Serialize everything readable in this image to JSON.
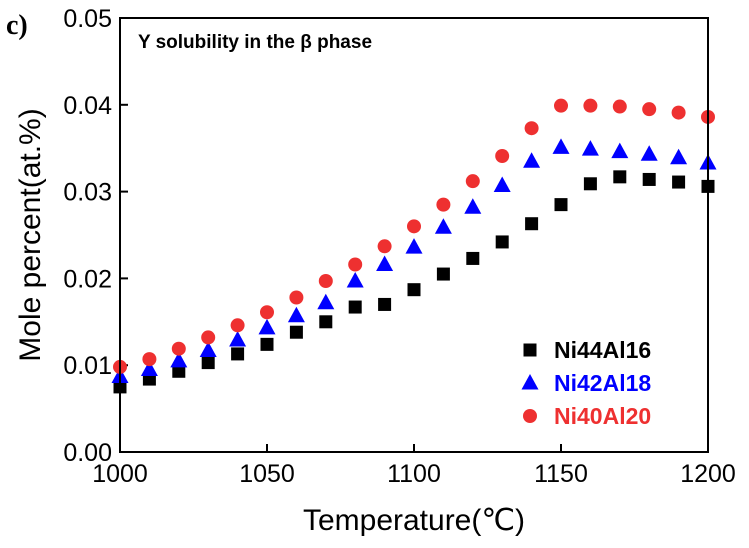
{
  "panel_label": "c)",
  "chart_data": {
    "type": "scatter",
    "title": "Y solubility in the β phase",
    "xlabel": "Temperature(℃)",
    "ylabel": "Mole percent(at.%)",
    "xlim": [
      1000,
      1200
    ],
    "ylim": [
      0,
      0.05
    ],
    "xticks": [
      1000,
      1050,
      1100,
      1150,
      1200
    ],
    "yticks": [
      0.0,
      0.01,
      0.02,
      0.03,
      0.04,
      0.05
    ],
    "xtick_labels": [
      "1000",
      "1050",
      "1100",
      "1150",
      "1200"
    ],
    "ytick_labels": [
      "0.00",
      "0.01",
      "0.02",
      "0.03",
      "0.04",
      "0.05"
    ],
    "grid": false,
    "legend_position": "bottom-right",
    "x": [
      1000,
      1010,
      1020,
      1030,
      1040,
      1050,
      1060,
      1070,
      1080,
      1090,
      1100,
      1110,
      1120,
      1130,
      1140,
      1150,
      1160,
      1170,
      1180,
      1190,
      1200
    ],
    "series": [
      {
        "name": "Ni44Al16",
        "color": "#000000",
        "marker": "square",
        "values": [
          0.0075,
          0.0084,
          0.0093,
          0.0103,
          0.0113,
          0.0124,
          0.0138,
          0.015,
          0.0167,
          0.017,
          0.0187,
          0.0205,
          0.0223,
          0.0242,
          0.0263,
          0.0285,
          0.0309,
          0.0317,
          0.0314,
          0.0311,
          0.0306
        ]
      },
      {
        "name": "Ni42Al18",
        "color": "#0000ff",
        "marker": "triangle",
        "values": [
          0.0087,
          0.0095,
          0.0105,
          0.0117,
          0.0129,
          0.0143,
          0.0157,
          0.0172,
          0.0197,
          0.0216,
          0.0236,
          0.0259,
          0.0282,
          0.0307,
          0.0335,
          0.0351,
          0.0349,
          0.0346,
          0.0343,
          0.0339,
          0.0333
        ]
      },
      {
        "name": "Ni40Al20",
        "color": "#ee3030",
        "marker": "circle",
        "values": [
          0.0098,
          0.0107,
          0.0119,
          0.0132,
          0.0146,
          0.0161,
          0.0178,
          0.0197,
          0.0216,
          0.0237,
          0.026,
          0.0285,
          0.0312,
          0.0341,
          0.0373,
          0.0399,
          0.0399,
          0.0398,
          0.0395,
          0.0391,
          0.0386
        ]
      }
    ]
  }
}
